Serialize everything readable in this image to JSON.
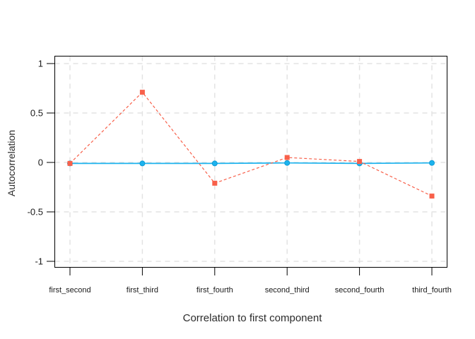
{
  "background": "#ffffff",
  "chart_data": {
    "type": "line",
    "title": "",
    "xlabel": "Correlation to first component",
    "ylabel": "Autocorrelation",
    "categories": [
      "first_second",
      "first_third",
      "first_fourth",
      "second_third",
      "second_fourth",
      "third_fourth"
    ],
    "series": [
      {
        "name": "red-dashed-squares",
        "color": "#f8604a",
        "linestyle": "dashed",
        "marker": "square",
        "values": [
          -0.01,
          0.71,
          -0.21,
          0.05,
          0.01,
          -0.34
        ]
      },
      {
        "name": "blue-solid-circles",
        "color": "#1cb3ee",
        "marker_edge": "#0d9bd6",
        "linestyle": "solid",
        "marker": "circle",
        "values": [
          -0.01,
          -0.01,
          -0.01,
          -0.005,
          -0.01,
          -0.005
        ]
      }
    ],
    "yticks": [
      1,
      0.5,
      0,
      -0.5,
      -1
    ],
    "ytick_labels": [
      "1",
      "0.5",
      "0",
      "-0.5",
      "-1"
    ],
    "ylim": [
      -1.06,
      1.08
    ],
    "grid": true,
    "grid_style": "dashed",
    "grid_color": "#e3e3e3",
    "axis_color": "#000000",
    "legend": "none"
  }
}
